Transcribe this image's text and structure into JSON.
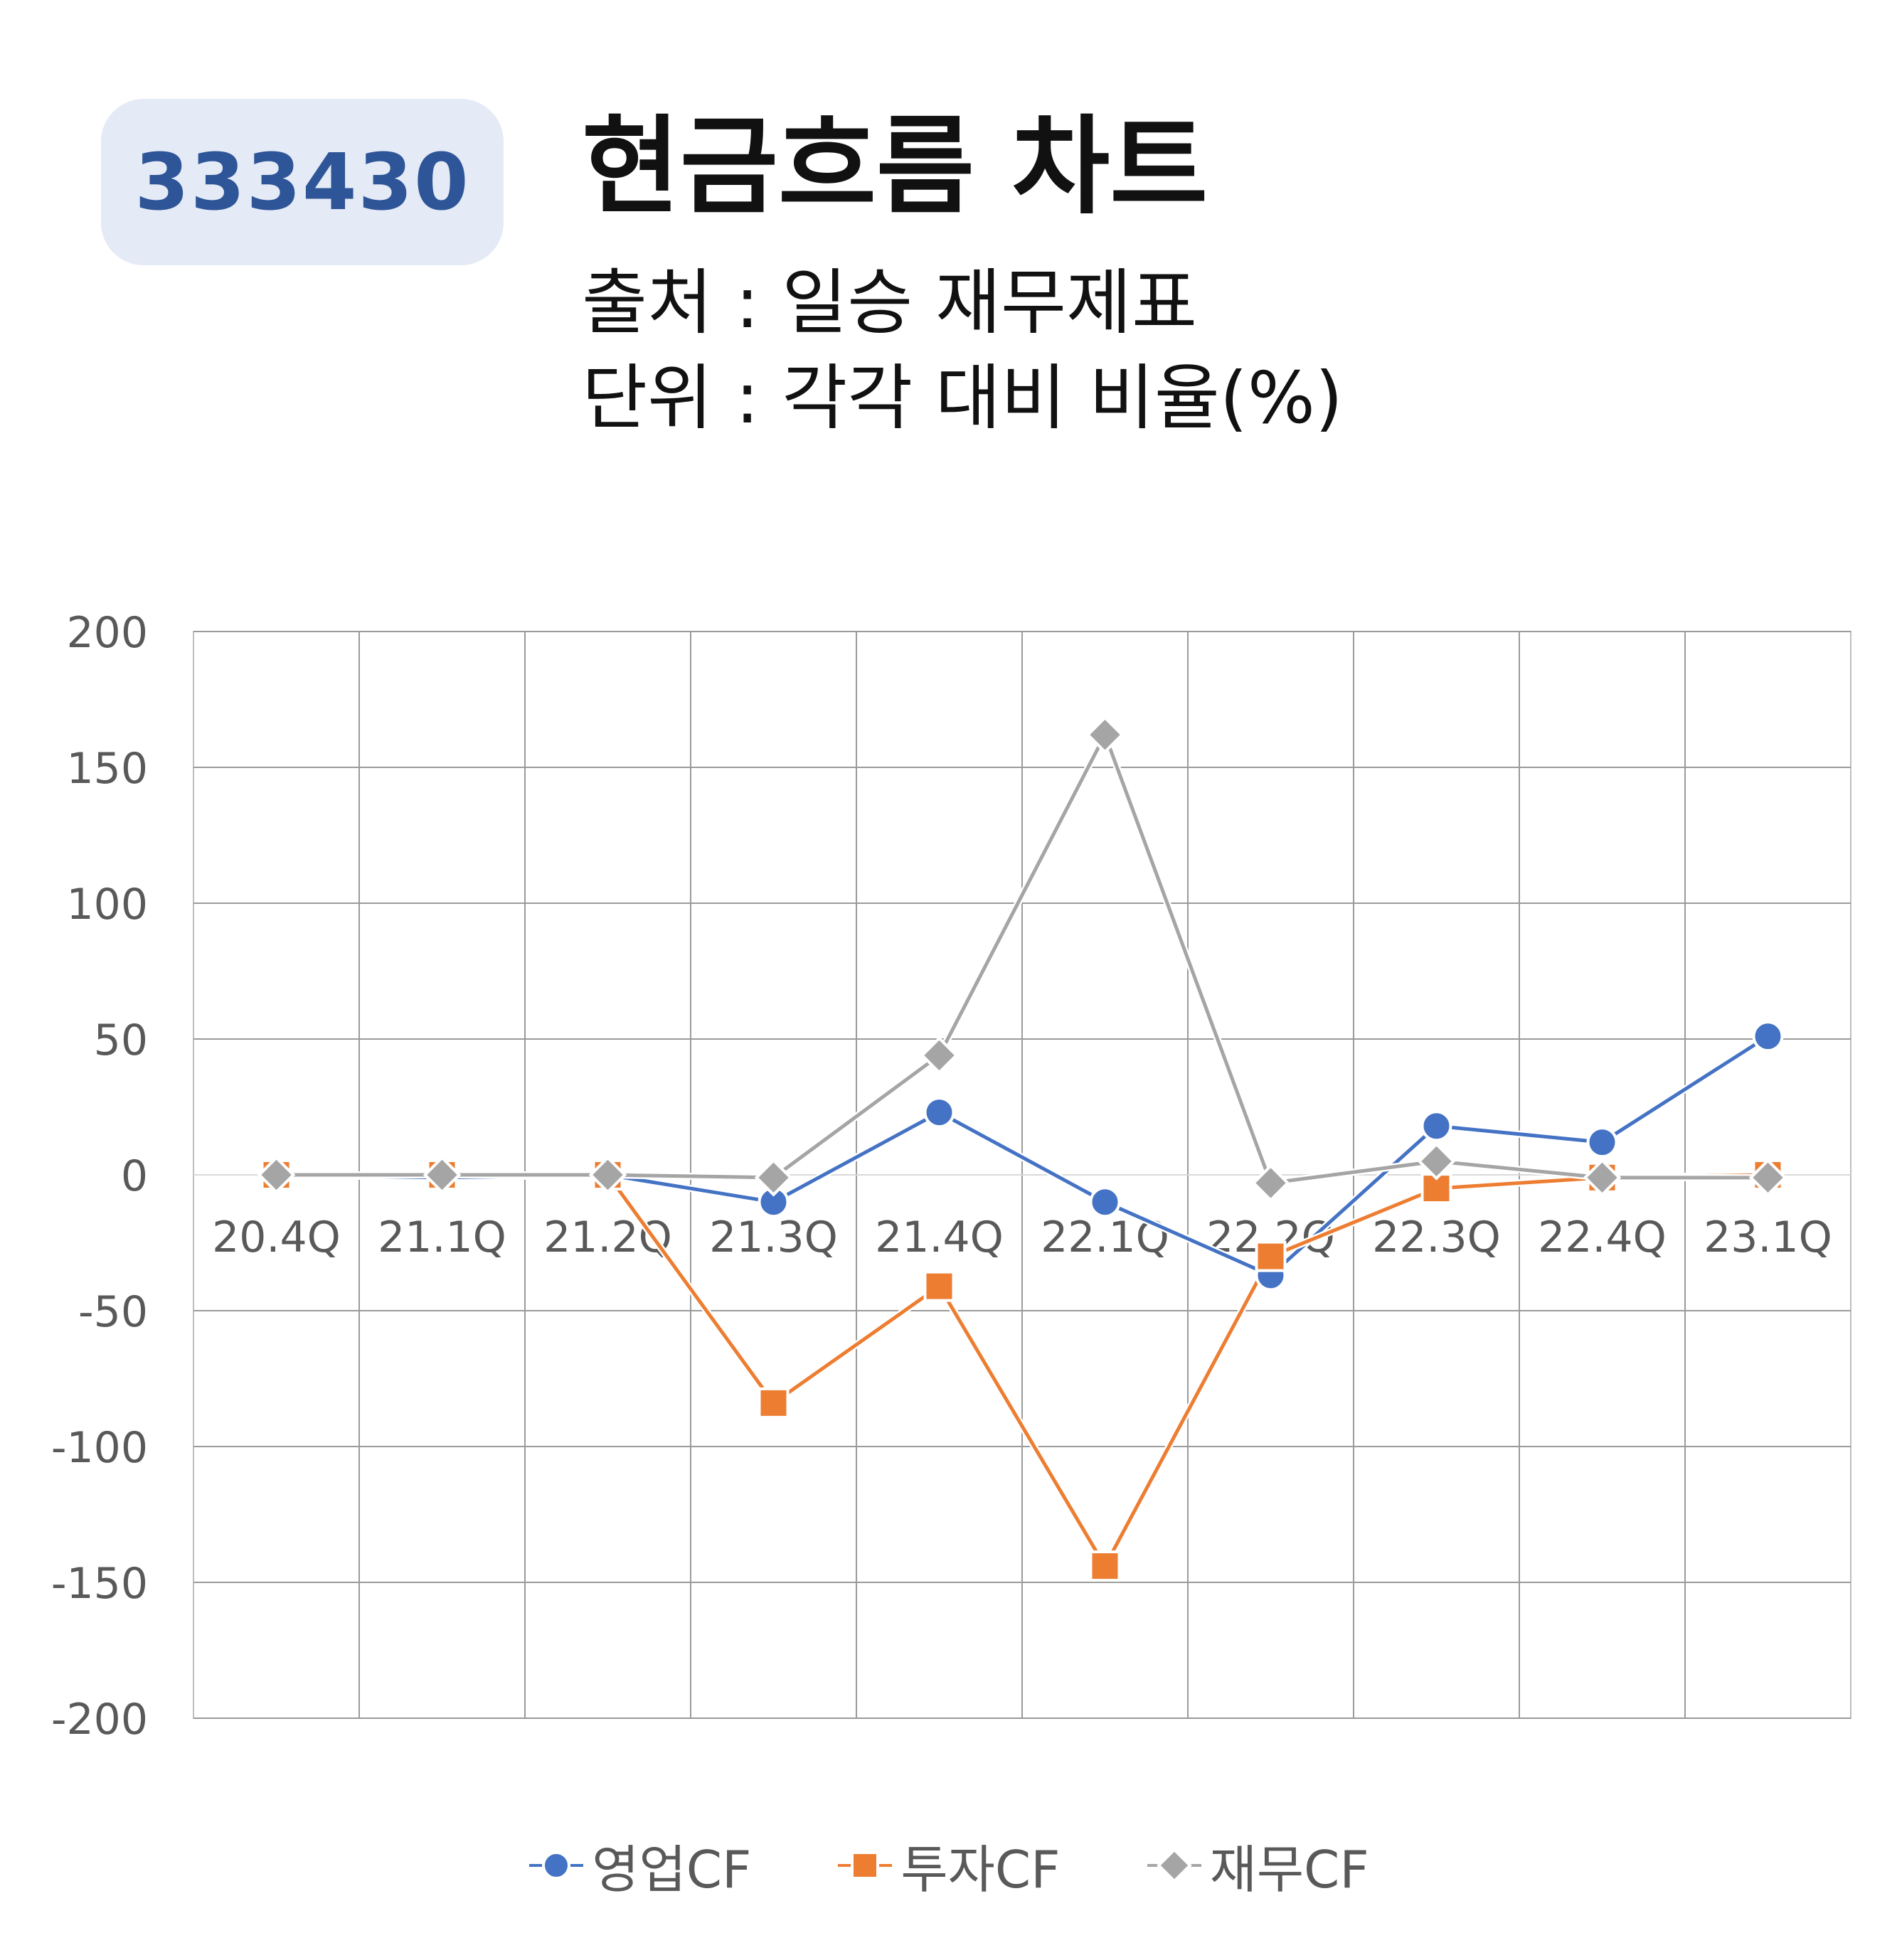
{
  "badge": {
    "code": "333430"
  },
  "header": {
    "title": "현금흐름 차트",
    "source": "출처 : 일승 재무제표",
    "unit": "단위 : 각각 대비 비율(%)"
  },
  "colors": {
    "badge_bg": "#e4eaf6",
    "badge_text": "#2e5597",
    "op": "#4472c4",
    "inv": "#ed7d31",
    "fin": "#a5a5a5"
  },
  "chart_data": {
    "type": "line",
    "categories": [
      "20.4Q",
      "21.1Q",
      "21.2Q",
      "21.3Q",
      "21.4Q",
      "22.1Q",
      "22.2Q",
      "22.3Q",
      "22.4Q",
      "23.1Q"
    ],
    "yticks": [
      "200",
      "150",
      "100",
      "50",
      "0",
      "-50",
      "-100",
      "-150",
      "-200"
    ],
    "ylim": [
      -200,
      200
    ],
    "grid": true,
    "legend_position": "bottom",
    "series": [
      {
        "name": "영업CF",
        "marker": "circle",
        "color": "#4472c4",
        "values": [
          0,
          -1,
          0,
          -10,
          23,
          -10,
          -37,
          18,
          12,
          51
        ]
      },
      {
        "name": "투자CF",
        "marker": "square",
        "color": "#ed7d31",
        "values": [
          0,
          0,
          0,
          -84,
          -41,
          -144,
          -30,
          -5,
          -1,
          0
        ]
      },
      {
        "name": "재무CF",
        "marker": "diamond",
        "color": "#a5a5a5",
        "values": [
          0,
          0,
          0,
          -1,
          44,
          162,
          -3,
          5,
          -1,
          -1
        ]
      }
    ]
  }
}
